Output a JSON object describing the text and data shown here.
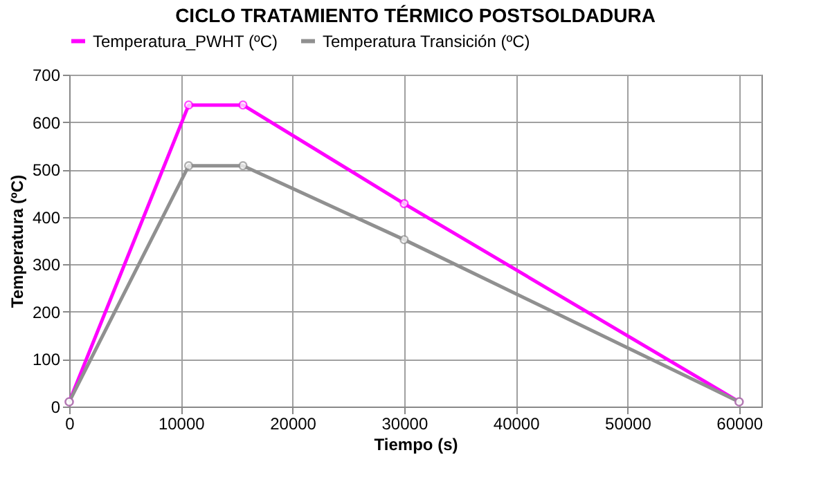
{
  "chart_data": {
    "type": "line",
    "title": "CICLO TRATAMIENTO TÉRMICO POSTSOLDADURA",
    "xlabel": "Tiempo (s)",
    "ylabel": "Temperatura (ºC)",
    "series": [
      {
        "name": "Temperatura_PWHT (ºC)",
        "color": "#ff00ff",
        "x": [
          0,
          10700,
          15560,
          30000,
          60000
        ],
        "values": [
          10,
          636,
          636,
          428,
          10
        ]
      },
      {
        "name": "Temperatura Transición (ºC)",
        "color": "#909090",
        "x": [
          0,
          10700,
          15560,
          30000,
          60000
        ],
        "values": [
          10,
          508,
          508,
          352,
          10
        ]
      }
    ],
    "xlim": [
      0,
      62000
    ],
    "xticks": [
      0,
      10000,
      20000,
      30000,
      40000,
      50000,
      60000
    ],
    "ylim": [
      0,
      700
    ],
    "yticks": [
      0,
      100,
      200,
      300,
      400,
      500,
      600,
      700
    ],
    "grid": true,
    "legend": "top",
    "marker": "circle",
    "line_style": "solid"
  }
}
